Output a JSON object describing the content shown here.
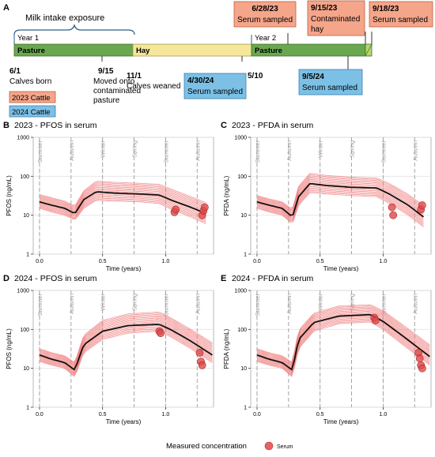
{
  "colors": {
    "pasture": "#6aa84f",
    "hay": "#f6e69a",
    "cattle_2023": "#f4a58a",
    "cattle_2024": "#7cc0e6",
    "model_lines": "#f08080",
    "median_line": "#111111",
    "points": "#e04848"
  },
  "timeline": {
    "panel_letter": "A",
    "exposure_label": "Milk intake exposure",
    "year1_label": "Year 1",
    "year2_label": "Year 2",
    "segments": [
      {
        "label": "Pasture",
        "type": "pasture"
      },
      {
        "label": "Hay",
        "type": "hay"
      },
      {
        "label": "Pasture",
        "type": "pasture"
      }
    ],
    "events_below": [
      {
        "date": "6/1",
        "text": "Calves born"
      },
      {
        "date": "9/15",
        "text": "Moved onto contaminated pasture"
      },
      {
        "date": "11/1",
        "text": "Calves weaned"
      },
      {
        "date": "5/10",
        "text": ""
      }
    ],
    "boxes_2023": [
      {
        "date": "6/28/23",
        "text": "Serum sampled"
      },
      {
        "date": "9/15/23",
        "text": "Contaminated hay"
      },
      {
        "date": "9/18/23",
        "text": "Serum sampled"
      }
    ],
    "boxes_2024": [
      {
        "date": "4/30/24",
        "text": "Serum sampled"
      },
      {
        "date": "9/5/24",
        "text": "Serum sampled"
      }
    ],
    "legend": [
      {
        "label": "2023 Cattle",
        "type": "cattle_2023"
      },
      {
        "label": "2024 Cattle",
        "type": "cattle_2024"
      }
    ]
  },
  "chart_data": [
    {
      "panel": "B",
      "type": "line",
      "title": "2023 - PFOS in serum",
      "xlabel": "Time (years)",
      "ylabel": "PFOS (ng/mL)",
      "xlim": [
        -0.05,
        1.38
      ],
      "ylim": [
        1,
        1000
      ],
      "yscale": "log",
      "xticks": [
        0.0,
        0.5,
        1.0
      ],
      "xtick_labels": [
        "0.0",
        "0.5",
        "1.0"
      ],
      "yticks": [
        1,
        10,
        100,
        1000
      ],
      "seasons": [
        {
          "name": "Summer",
          "x": 0.0
        },
        {
          "name": "Autumn",
          "x": 0.25
        },
        {
          "name": "Winter",
          "x": 0.5
        },
        {
          "name": "Spring",
          "x": 0.75
        },
        {
          "name": "Summer",
          "x": 1.0
        },
        {
          "name": "Autumn",
          "x": 1.25
        }
      ],
      "median": {
        "x": [
          0,
          0.1,
          0.2,
          0.28,
          0.35,
          0.45,
          0.6,
          0.8,
          0.95,
          1.05,
          1.2,
          1.32
        ],
        "y": [
          22,
          18,
          15,
          11,
          25,
          40,
          37,
          35,
          33,
          24,
          16,
          11
        ]
      },
      "band": {
        "lower": [
          15,
          12,
          10,
          7.5,
          15,
          24,
          23,
          22,
          20,
          14,
          9,
          6
        ],
        "upper": [
          34,
          28,
          23,
          17,
          42,
          75,
          70,
          66,
          62,
          46,
          30,
          21
        ]
      },
      "points": {
        "x": [
          1.07,
          1.08,
          1.29,
          1.3,
          1.31
        ],
        "y": [
          12,
          14,
          10,
          13,
          16
        ]
      }
    },
    {
      "panel": "C",
      "type": "line",
      "title": "2023 - PFDA in serum",
      "xlabel": "Time (years)",
      "ylabel": "PFDA (ng/mL)",
      "xlim": [
        -0.05,
        1.38
      ],
      "ylim": [
        1,
        1000
      ],
      "yscale": "log",
      "xticks": [
        0.0,
        0.5,
        1.0
      ],
      "xtick_labels": [
        "0.0",
        "0.5",
        "1.0"
      ],
      "yticks": [
        1,
        10,
        100,
        1000
      ],
      "seasons": [
        {
          "name": "Summer",
          "x": 0.0
        },
        {
          "name": "Autumn",
          "x": 0.25
        },
        {
          "name": "Winter",
          "x": 0.5
        },
        {
          "name": "Spring",
          "x": 0.75
        },
        {
          "name": "Summer",
          "x": 1.0
        },
        {
          "name": "Autumn",
          "x": 1.25
        }
      ],
      "median": {
        "x": [
          0,
          0.1,
          0.2,
          0.28,
          0.33,
          0.42,
          0.55,
          0.75,
          0.95,
          1.05,
          1.2,
          1.32
        ],
        "y": [
          22,
          18,
          15,
          9,
          30,
          65,
          58,
          52,
          50,
          35,
          18,
          9
        ]
      },
      "band": {
        "lower": [
          15,
          12,
          10,
          6,
          18,
          38,
          35,
          32,
          30,
          20,
          10,
          5
        ],
        "upper": [
          32,
          26,
          22,
          14,
          55,
          120,
          105,
          95,
          90,
          65,
          34,
          18
        ]
      },
      "points": {
        "x": [
          1.07,
          1.08,
          1.3,
          1.31
        ],
        "y": [
          16,
          10,
          14,
          18
        ]
      }
    },
    {
      "panel": "D",
      "type": "line",
      "title": "2024 - PFOS in serum",
      "xlabel": "Time (years)",
      "ylabel": "PFOS (ng/mL)",
      "xlim": [
        -0.05,
        1.38
      ],
      "ylim": [
        1,
        1000
      ],
      "yscale": "log",
      "xticks": [
        0.0,
        0.5,
        1.0
      ],
      "xtick_labels": [
        "0.0",
        "0.5",
        "1.0"
      ],
      "yticks": [
        1,
        10,
        100,
        1000
      ],
      "seasons": [
        {
          "name": "Summer",
          "x": 0.0
        },
        {
          "name": "Autumn",
          "x": 0.25
        },
        {
          "name": "Winter",
          "x": 0.5
        },
        {
          "name": "Spring",
          "x": 0.75
        },
        {
          "name": "Summer",
          "x": 1.0
        },
        {
          "name": "Autumn",
          "x": 1.25
        }
      ],
      "median": {
        "x": [
          0,
          0.1,
          0.2,
          0.28,
          0.35,
          0.5,
          0.7,
          0.95,
          1.05,
          1.2,
          1.37
        ],
        "y": [
          22,
          17,
          14,
          9,
          40,
          90,
          125,
          135,
          95,
          50,
          22
        ]
      },
      "band": {
        "lower": [
          15,
          12,
          10,
          6,
          25,
          55,
          80,
          90,
          62,
          32,
          14
        ],
        "upper": [
          32,
          25,
          21,
          14,
          70,
          170,
          250,
          280,
          190,
          100,
          45
        ]
      },
      "points": {
        "x": [
          0.95,
          0.96,
          1.27,
          1.28,
          1.29
        ],
        "y": [
          90,
          80,
          25,
          15,
          12
        ]
      }
    },
    {
      "panel": "E",
      "type": "line",
      "title": "2024 - PFDA in serum",
      "xlabel": "Time (years)",
      "ylabel": "PFDA (ng/mL)",
      "xlim": [
        -0.05,
        1.38
      ],
      "ylim": [
        1,
        1000
      ],
      "yscale": "log",
      "xticks": [
        0.0,
        0.5,
        1.0
      ],
      "xtick_labels": [
        "0.0",
        "0.5",
        "1.0"
      ],
      "yticks": [
        1,
        10,
        100,
        1000
      ],
      "seasons": [
        {
          "name": "Summer",
          "x": 0.0
        },
        {
          "name": "Autumn",
          "x": 0.25
        },
        {
          "name": "Winter",
          "x": 0.5
        },
        {
          "name": "Spring",
          "x": 0.75
        },
        {
          "name": "Summer",
          "x": 1.0
        },
        {
          "name": "Autumn",
          "x": 1.25
        }
      ],
      "median": {
        "x": [
          0,
          0.1,
          0.2,
          0.28,
          0.33,
          0.45,
          0.65,
          0.9,
          1.0,
          1.15,
          1.37
        ],
        "y": [
          22,
          17,
          14,
          9,
          55,
          150,
          220,
          240,
          160,
          70,
          20
        ]
      },
      "band": {
        "lower": [
          15,
          12,
          10,
          6,
          32,
          90,
          140,
          155,
          100,
          42,
          12
        ],
        "upper": [
          32,
          25,
          21,
          14,
          95,
          260,
          400,
          430,
          300,
          135,
          40
        ]
      },
      "points": {
        "x": [
          0.93,
          0.94,
          1.28,
          1.29,
          1.3,
          1.31
        ],
        "y": [
          200,
          170,
          25,
          18,
          12,
          10
        ]
      }
    }
  ],
  "legend": {
    "title": "Measured concentration",
    "label": "Serum"
  }
}
